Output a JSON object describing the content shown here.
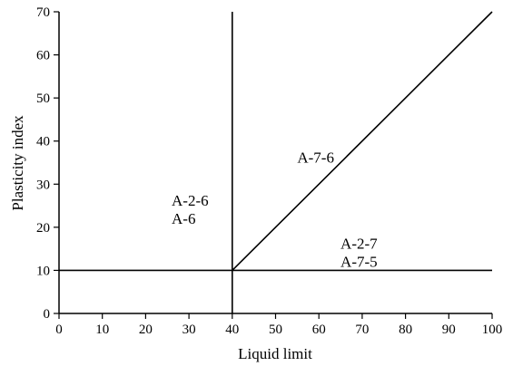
{
  "chart_data": {
    "type": "line",
    "title": "",
    "xlabel": "Liquid limit",
    "ylabel": "Plasticity index",
    "xlim": [
      0,
      100
    ],
    "ylim": [
      0,
      70
    ],
    "x_ticks": [
      0,
      10,
      20,
      30,
      40,
      50,
      60,
      70,
      80,
      90,
      100
    ],
    "y_ticks": [
      0,
      10,
      20,
      30,
      40,
      50,
      60,
      70
    ],
    "grid": false,
    "series": [
      {
        "x": [
          0,
          100
        ],
        "y": [
          10,
          10
        ]
      },
      {
        "x": [
          40,
          40
        ],
        "y": [
          0,
          70
        ]
      },
      {
        "x": [
          40,
          100
        ],
        "y": [
          10,
          70
        ]
      }
    ],
    "annotations": [
      {
        "lines": [
          "A-7-6"
        ],
        "x": 55,
        "y": 35
      },
      {
        "lines": [
          "A-2-6",
          "A-6"
        ],
        "x": 26,
        "y": 25
      },
      {
        "lines": [
          "A-2-7",
          "A-7-5"
        ],
        "x": 65,
        "y": 15
      }
    ],
    "colors": {
      "line": "#000000",
      "text": "#000000",
      "background": "#ffffff"
    }
  }
}
